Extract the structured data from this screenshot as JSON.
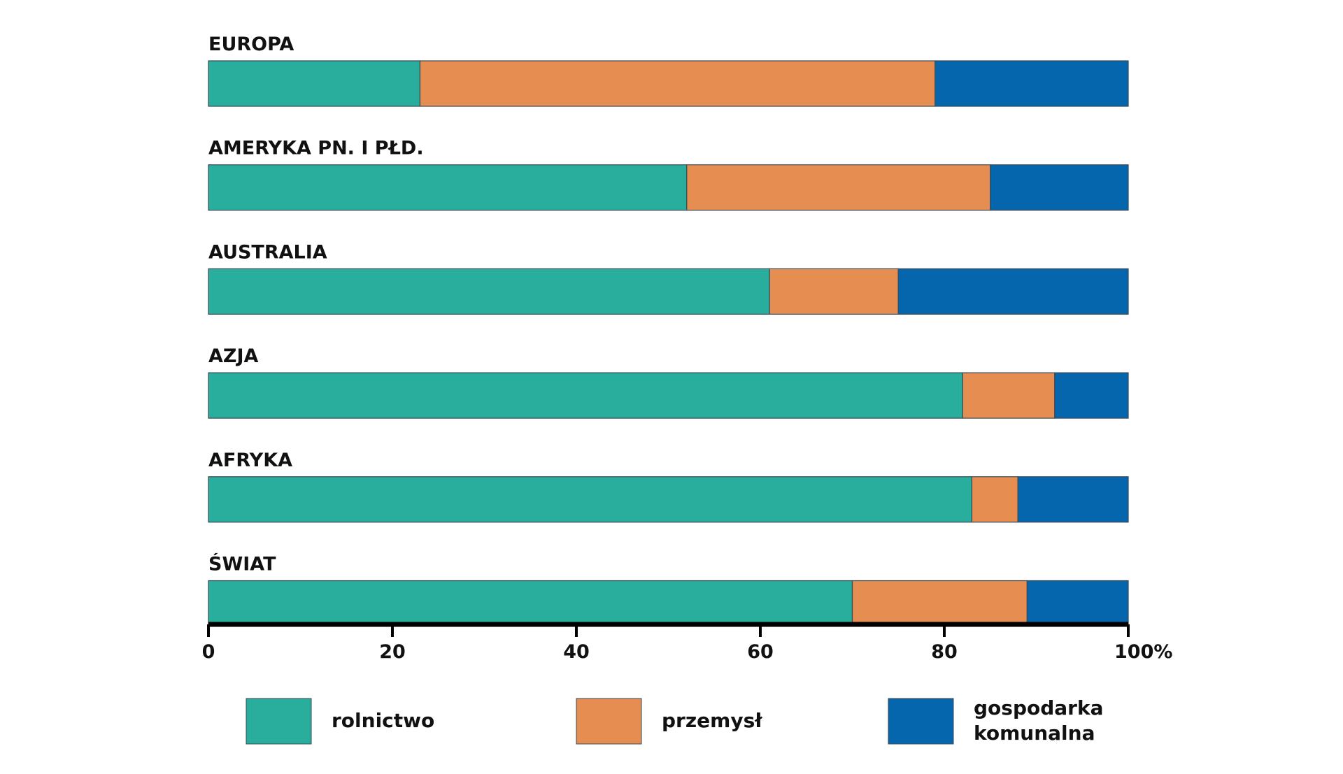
{
  "chart_data": {
    "type": "stacked-bar-horizontal",
    "categories": [
      "EUROPA",
      "AMERYKA PN. I PŁD.",
      "AUSTRALIA",
      "AZJA",
      "AFRYKA",
      "ŚWIAT"
    ],
    "series": [
      {
        "name": "rolnictwo",
        "color": "#29ad9d",
        "values": [
          23,
          52,
          61,
          82,
          83,
          70
        ]
      },
      {
        "name": "przemysł",
        "color": "#e68d51",
        "values": [
          56,
          33,
          14,
          10,
          5,
          19
        ]
      },
      {
        "name": "gospodarka komunalna",
        "color": "#0566ad",
        "values": [
          21,
          15,
          25,
          8,
          12,
          11
        ]
      }
    ],
    "xlim": [
      0,
      100
    ],
    "xticks": [
      0,
      20,
      40,
      60,
      80,
      {
        "value": 100,
        "label": "100%"
      }
    ]
  }
}
